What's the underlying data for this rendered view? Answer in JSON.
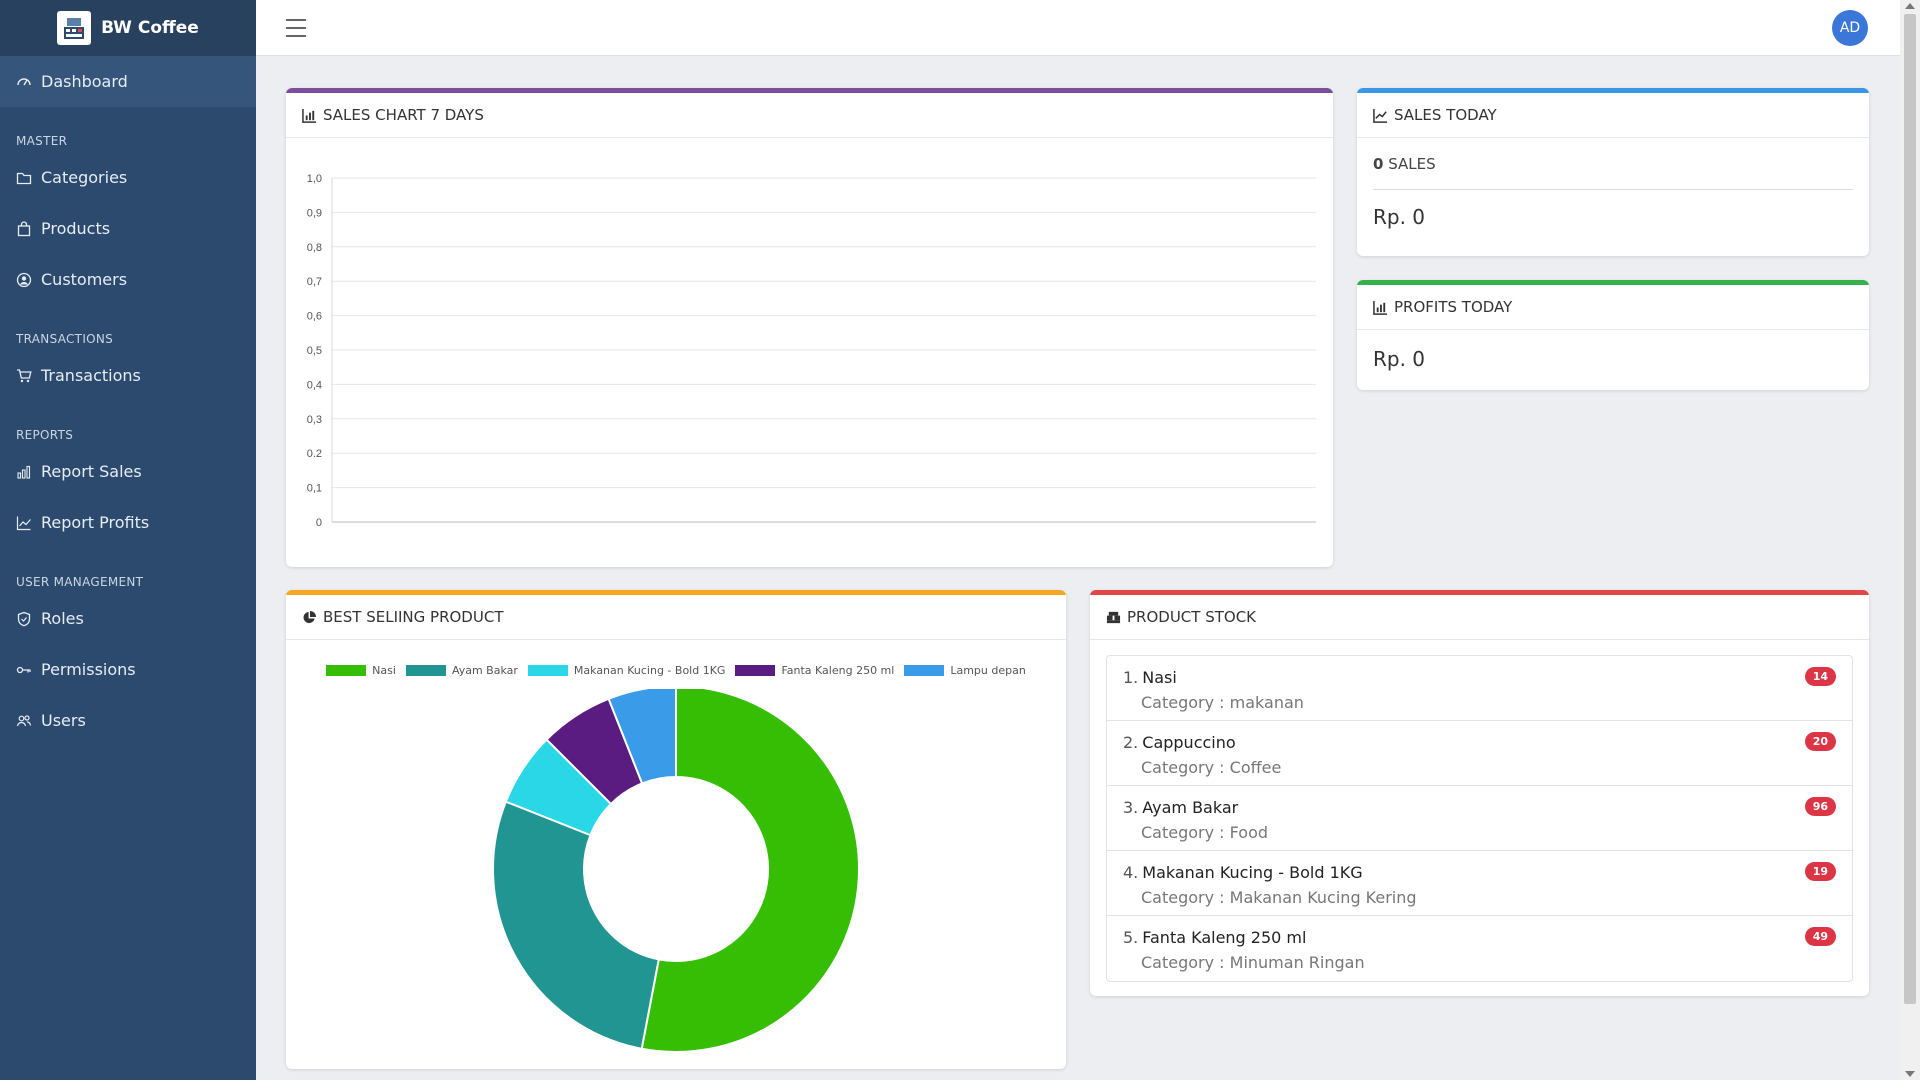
{
  "brand": {
    "name": "BW Coffee"
  },
  "sidebar": {
    "dashboard": "Dashboard",
    "sections": {
      "master": "MASTER",
      "transactions": "TRANSACTIONS",
      "reports": "REPORTS",
      "user_management": "USER MANAGEMENT"
    },
    "items": {
      "categories": "Categories",
      "products": "Products",
      "customers": "Customers",
      "transactions": "Transactions",
      "report_sales": "Report Sales",
      "report_profits": "Report Profits",
      "roles": "Roles",
      "permissions": "Permissions",
      "users": "Users"
    }
  },
  "topbar": {
    "avatar_initials": "AD"
  },
  "cards": {
    "sales_chart": {
      "title": "SALES CHART 7 DAYS",
      "accent": "#7e4e9c"
    },
    "sales_today": {
      "title": "SALES TODAY",
      "accent": "#3b96e8",
      "count": "0",
      "count_unit": "SALES",
      "amount": "Rp. 0"
    },
    "profits_today": {
      "title": "PROFITS TODAY",
      "accent": "#35b04a",
      "amount": "Rp. 0"
    },
    "best_selling": {
      "title": "BEST SELIING PRODUCT",
      "accent": "#f5a623"
    },
    "product_stock": {
      "title": "PRODUCT STOCK",
      "accent": "#e04848"
    }
  },
  "stock": [
    {
      "num": "1.",
      "name": "Nasi",
      "category": "Category : makanan",
      "qty": "14"
    },
    {
      "num": "2.",
      "name": "Cappuccino",
      "category": "Category : Coffee",
      "qty": "20"
    },
    {
      "num": "3.",
      "name": "Ayam Bakar",
      "category": "Category : Food",
      "qty": "96"
    },
    {
      "num": "4.",
      "name": "Makanan Kucing - Bold 1KG",
      "category": "Category : Makanan Kucing Kering",
      "qty": "19"
    },
    {
      "num": "5.",
      "name": "Fanta Kaleng 250 ml",
      "category": "Category : Minuman Ringan",
      "qty": "49"
    }
  ],
  "chart_data": [
    {
      "type": "line",
      "x": [],
      "series": [],
      "ylim": [
        0,
        1.0
      ],
      "yticks": [
        "0",
        "0,1",
        "0.2",
        "0,3",
        "0,4",
        "0,5",
        "0,6",
        "0,7",
        "0,8",
        "0,9",
        "1,0"
      ],
      "grid": true
    },
    {
      "type": "pie",
      "donut": true,
      "categories": [
        "Nasi",
        "Ayam Bakar",
        "Makanan Kucing - Bold 1KG",
        "Fanta Kaleng 250 ml",
        "Lampu depan"
      ],
      "values": [
        53,
        28,
        6.5,
        6.5,
        6
      ],
      "colors": [
        "#35be04",
        "#209592",
        "#29d7e6",
        "#5b1c81",
        "#3a9ce8"
      ],
      "legend": "top"
    }
  ]
}
